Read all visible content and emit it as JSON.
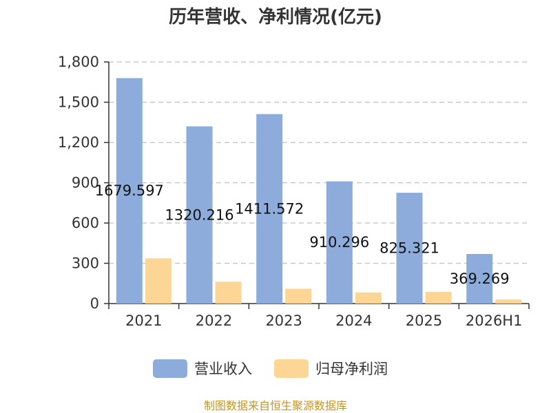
{
  "chart_data": {
    "type": "bar",
    "title": "历年营收、净利情况(亿元)",
    "categories": [
      "2021",
      "2022",
      "2023",
      "2024",
      "2025",
      "2026H1"
    ],
    "series": [
      {
        "name": "营业收入",
        "color": "#8eacdb",
        "values": [
          1679.597,
          1320.216,
          1411.572,
          910.296,
          825.321,
          369.269
        ],
        "labels": [
          "1679.597",
          "1320.216",
          "1411.572",
          "910.296",
          "825.321",
          "369.269"
        ]
      },
      {
        "name": "归母净利润",
        "color": "#fdd696",
        "values": [
          337,
          163,
          110,
          83,
          87,
          30
        ]
      }
    ],
    "yticks": [
      "0",
      "300",
      "600",
      "900",
      "1,200",
      "1,500",
      "1,800"
    ],
    "ylim": [
      0,
      1800
    ],
    "grid": true,
    "legend_position": "bottom"
  },
  "footer": {
    "source": "制图数据来自恒生聚源数据库"
  }
}
